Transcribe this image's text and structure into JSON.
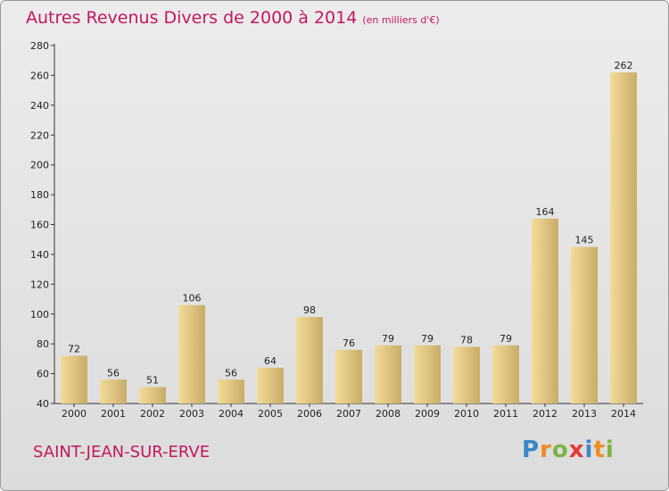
{
  "title": "Autres Revenus Divers de 2000 à 2014",
  "subtitle": "(en milliers d'€)",
  "commune": "SAINT-JEAN-SUR-ERVE",
  "logo": {
    "letters": [
      "P",
      "r",
      "o",
      "x",
      "i",
      "t",
      "i"
    ]
  },
  "colors": {
    "title": "#c2185b",
    "bar_light": "#f3dc98",
    "bar_dark": "#c8ac68",
    "background": "#e2e2e2"
  },
  "chart_data": {
    "type": "bar",
    "categories": [
      "2000",
      "2001",
      "2002",
      "2003",
      "2004",
      "2005",
      "2006",
      "2007",
      "2008",
      "2009",
      "2010",
      "2011",
      "2012",
      "2013",
      "2014"
    ],
    "values": [
      72,
      56,
      51,
      106,
      56,
      64,
      98,
      76,
      79,
      79,
      78,
      79,
      164,
      145,
      262
    ],
    "ylim": [
      40,
      280
    ],
    "yticks": [
      40,
      60,
      80,
      100,
      120,
      140,
      160,
      180,
      200,
      220,
      240,
      260,
      280
    ],
    "grid": false,
    "data_labels": true
  }
}
